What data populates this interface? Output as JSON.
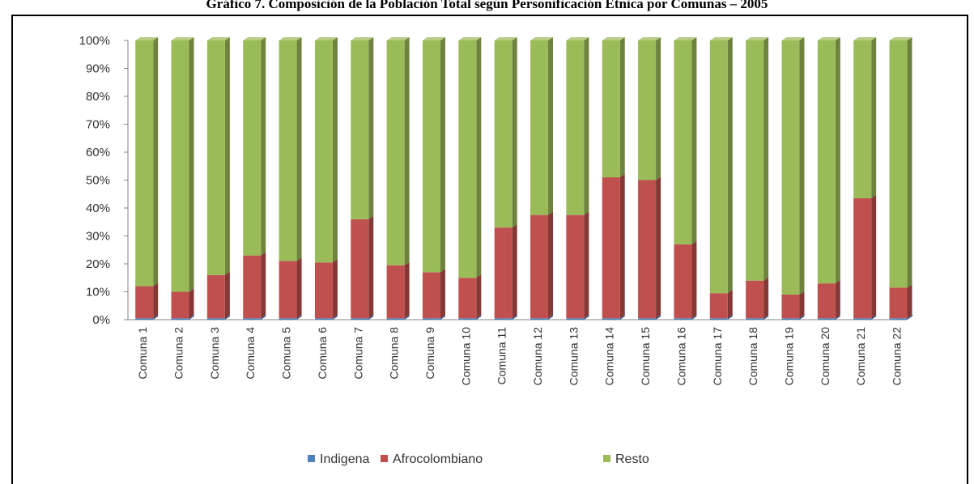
{
  "chart_data": {
    "type": "bar",
    "stacked": true,
    "title": "Gráfico 7. Composición de la Población Total según Personificación Étnica por Comunas – 2005",
    "categories": [
      "Comuna 1",
      "Comuna 2",
      "Comuna 3",
      "Comuna 4",
      "Comuna 5",
      "Comuna 6",
      "Comuna 7",
      "Comuna 8",
      "Comuna 9",
      "Comuna 10",
      "Comuna 11",
      "Comuna 12",
      "Comuna 13",
      "Comuna 14",
      "Comuna 15",
      "Comuna 16",
      "Comuna 17",
      "Comuna 18",
      "Comuna 19",
      "Comuna 20",
      "Comuna 21",
      "Comuna 22"
    ],
    "series": [
      {
        "name": "Indigena",
        "color": "#4f81bd",
        "values": [
          0.5,
          0.5,
          0.5,
          0.5,
          0.5,
          0.5,
          0.5,
          0.5,
          0.5,
          0.5,
          0.5,
          0.5,
          0.5,
          0.5,
          0.5,
          0.5,
          0.5,
          0.5,
          0.5,
          0.5,
          0.5,
          0.5
        ]
      },
      {
        "name": "Afrocolombiano",
        "color": "#c0504d",
        "values": [
          11.5,
          9.5,
          15.5,
          22.5,
          20.5,
          20,
          35.5,
          19,
          16.5,
          14.5,
          32.5,
          37,
          37,
          50.5,
          49.5,
          26.5,
          9,
          13.5,
          8.5,
          12.5,
          43,
          11
        ]
      },
      {
        "name": "Resto",
        "color": "#9bbb59",
        "values": [
          88,
          90,
          84,
          77,
          79,
          79.5,
          64,
          80.5,
          83,
          85,
          67,
          62.5,
          62.5,
          49,
          50,
          73,
          90.5,
          86,
          91,
          87,
          56.5,
          88.5
        ]
      }
    ],
    "yticks": [
      "0%",
      "10%",
      "20%",
      "30%",
      "40%",
      "50%",
      "60%",
      "70%",
      "80%",
      "90%",
      "100%"
    ],
    "ylim": [
      0,
      100
    ],
    "legend_position": "bottom",
    "grid": false
  }
}
